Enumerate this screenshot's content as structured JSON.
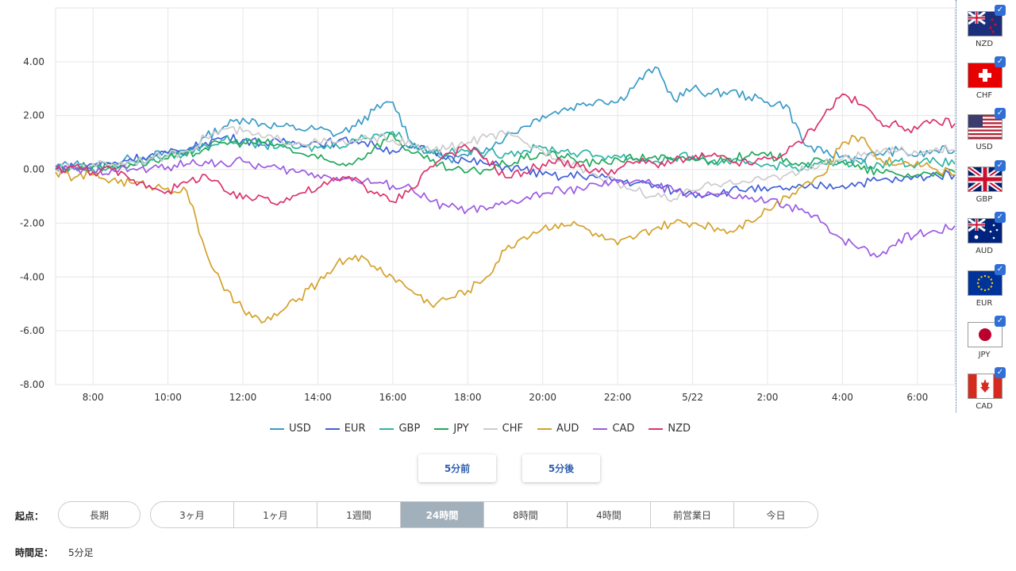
{
  "chart_data": {
    "type": "line",
    "y_ticks": [
      "4.00",
      "2.00",
      "0.00",
      "-2.00",
      "-4.00",
      "-6.00",
      "-8.00"
    ],
    "ylim": [
      -8,
      6
    ],
    "x_ticks": [
      "8:00",
      "10:00",
      "12:00",
      "14:00",
      "16:00",
      "18:00",
      "20:00",
      "22:00",
      "5/22",
      "2:00",
      "4:00",
      "6:00"
    ],
    "xlim": [
      0,
      24
    ],
    "grid": true,
    "legend": "bottom",
    "x": [
      0,
      0.5,
      1,
      1.5,
      2,
      2.5,
      3,
      3.5,
      4,
      4.5,
      5,
      5.5,
      6,
      6.5,
      7,
      7.5,
      8,
      8.5,
      9,
      9.5,
      10,
      10.5,
      11,
      11.5,
      12,
      12.5,
      13,
      13.5,
      14,
      14.5,
      15,
      15.5,
      16,
      16.5,
      17,
      17.5,
      18,
      18.5,
      19,
      19.5,
      20,
      20.5,
      21,
      21.5,
      22,
      22.5,
      23,
      23.5,
      24
    ],
    "series": [
      {
        "name": "USD",
        "color": "#3a9bc7",
        "values": [
          0.1,
          0.2,
          0.1,
          0.2,
          0.4,
          0.5,
          0.6,
          0.7,
          1.2,
          1.6,
          1.9,
          1.7,
          1.6,
          1.5,
          1.5,
          1.3,
          1.6,
          2.2,
          2.5,
          1.0,
          0.6,
          0.4,
          0.5,
          0.8,
          1.2,
          1.6,
          2.0,
          2.2,
          2.4,
          2.6,
          2.5,
          3.2,
          3.8,
          2.6,
          3.0,
          2.8,
          2.9,
          2.7,
          2.5,
          2.4,
          0.9,
          0.6,
          0.5,
          0.4,
          0.6,
          0.7,
          0.5,
          0.7,
          0.7
        ]
      },
      {
        "name": "EUR",
        "color": "#3f5fd6",
        "values": [
          0.0,
          0.1,
          0.2,
          0.2,
          0.4,
          0.5,
          0.6,
          0.7,
          1.0,
          1.2,
          1.1,
          1.0,
          1.0,
          1.0,
          1.0,
          1.0,
          1.1,
          0.9,
          0.7,
          0.8,
          0.7,
          0.5,
          0.3,
          0.2,
          0.1,
          0.0,
          -0.2,
          -0.3,
          -0.2,
          -0.3,
          -0.4,
          -0.5,
          -0.6,
          -0.8,
          -0.9,
          -0.9,
          -0.8,
          -0.7,
          -0.8,
          -0.7,
          -0.7,
          -0.6,
          -0.6,
          -0.5,
          -0.4,
          -0.4,
          -0.3,
          -0.2,
          -0.2
        ]
      },
      {
        "name": "GBP",
        "color": "#2fb3a6",
        "values": [
          0.1,
          0.1,
          0.0,
          0.1,
          0.2,
          0.4,
          0.5,
          0.6,
          0.9,
          1.1,
          1.0,
          0.9,
          0.9,
          0.8,
          0.8,
          0.9,
          1.1,
          1.3,
          1.4,
          0.9,
          0.7,
          0.6,
          0.7,
          0.6,
          0.6,
          0.7,
          0.8,
          0.7,
          0.6,
          0.5,
          0.5,
          0.4,
          0.3,
          0.4,
          0.5,
          0.3,
          0.2,
          0.3,
          0.2,
          0.1,
          0.1,
          0.2,
          0.3,
          0.2,
          0.2,
          0.3,
          0.2,
          0.3,
          0.2
        ]
      },
      {
        "name": "JPY",
        "color": "#20a85a",
        "values": [
          0.0,
          0.1,
          0.1,
          0.1,
          0.2,
          0.3,
          0.4,
          0.5,
          0.8,
          1.0,
          1.0,
          1.0,
          0.9,
          0.6,
          0.4,
          0.2,
          0.3,
          0.8,
          1.3,
          0.6,
          0.3,
          0.0,
          -0.1,
          0.0,
          0.2,
          0.4,
          0.6,
          0.5,
          0.3,
          0.2,
          0.4,
          0.4,
          0.5,
          0.3,
          0.4,
          0.3,
          0.4,
          0.5,
          0.5,
          0.4,
          0.2,
          0.3,
          0.3,
          0.0,
          -0.1,
          -0.2,
          -0.2,
          -0.1,
          -0.1
        ]
      },
      {
        "name": "CHF",
        "color": "#cccccc",
        "values": [
          0.0,
          0.1,
          0.2,
          0.2,
          0.3,
          0.4,
          0.5,
          0.7,
          1.2,
          1.5,
          1.4,
          1.2,
          1.1,
          1.0,
          1.0,
          1.0,
          1.0,
          1.2,
          1.1,
          0.9,
          0.7,
          0.8,
          1.0,
          1.2,
          1.3,
          1.0,
          0.7,
          0.4,
          0.1,
          -0.3,
          -0.5,
          -0.8,
          -1.0,
          -1.1,
          -0.8,
          -0.6,
          -0.4,
          -0.5,
          -0.3,
          -0.2,
          0.0,
          0.2,
          0.4,
          0.5,
          0.6,
          0.7,
          0.6,
          0.8,
          0.7
        ]
      },
      {
        "name": "AUD",
        "color": "#d4a12a",
        "values": [
          -0.1,
          -0.3,
          -0.2,
          -0.4,
          -0.5,
          -0.6,
          -0.7,
          -0.8,
          -3.0,
          -4.5,
          -5.2,
          -5.7,
          -5.3,
          -4.8,
          -4.2,
          -3.5,
          -3.2,
          -3.6,
          -4.0,
          -4.5,
          -5.0,
          -4.8,
          -4.5,
          -4.0,
          -3.0,
          -2.5,
          -2.2,
          -2.0,
          -2.1,
          -2.5,
          -2.8,
          -2.5,
          -2.2,
          -2.0,
          -2.0,
          -2.1,
          -2.3,
          -1.9,
          -1.5,
          -1.0,
          -0.5,
          -0.2,
          1.0,
          1.2,
          0.4,
          0.2,
          0.3,
          0.0,
          -0.2
        ]
      },
      {
        "name": "CAD",
        "color": "#9b5ae0",
        "values": [
          0.0,
          0.0,
          -0.1,
          0.0,
          0.0,
          0.0,
          0.1,
          0.2,
          0.3,
          0.2,
          0.3,
          0.1,
          0.0,
          -0.1,
          -0.2,
          -0.3,
          -0.4,
          -0.5,
          -0.6,
          -0.7,
          -1.2,
          -1.4,
          -1.5,
          -1.5,
          -1.3,
          -1.1,
          -0.9,
          -0.8,
          -0.7,
          -0.6,
          -0.5,
          -0.4,
          -0.6,
          -0.8,
          -0.9,
          -0.9,
          -1.0,
          -1.1,
          -1.2,
          -1.3,
          -1.6,
          -2.0,
          -2.6,
          -2.9,
          -3.2,
          -2.6,
          -2.4,
          -2.3,
          -2.1
        ]
      },
      {
        "name": "NZD",
        "color": "#d9336e",
        "values": [
          0.0,
          0.1,
          -0.1,
          0.0,
          -0.4,
          -0.6,
          -0.8,
          -0.5,
          -0.2,
          -0.8,
          -1.1,
          -1.0,
          -1.2,
          -0.9,
          -0.7,
          -0.4,
          -0.3,
          -0.9,
          -1.2,
          -0.7,
          0.1,
          0.6,
          0.8,
          0.4,
          -0.3,
          -0.1,
          0.2,
          0.3,
          0.1,
          -0.1,
          0.0,
          0.3,
          0.2,
          0.3,
          0.4,
          0.5,
          0.3,
          0.2,
          0.4,
          0.6,
          1.2,
          2.0,
          2.8,
          2.4,
          1.8,
          1.6,
          1.5,
          1.8,
          1.7
        ]
      }
    ]
  },
  "flags": [
    {
      "code": "NZD",
      "checked": "✓"
    },
    {
      "code": "CHF",
      "checked": "✓"
    },
    {
      "code": "USD",
      "checked": "✓"
    },
    {
      "code": "GBP",
      "checked": "✓"
    },
    {
      "code": "AUD",
      "checked": "✓"
    },
    {
      "code": "EUR",
      "checked": "✓"
    },
    {
      "code": "JPY",
      "checked": "✓"
    },
    {
      "code": "CAD",
      "checked": "✓"
    }
  ],
  "controls": {
    "prev_label": "5分前",
    "next_label": "5分後"
  },
  "range": {
    "label": "起点：",
    "long_label": "長期",
    "options": [
      "3ヶ月",
      "1ヶ月",
      "1週間",
      "24時間",
      "8時間",
      "4時間",
      "前営業日",
      "今日"
    ],
    "active": "24時間"
  },
  "timeframe": {
    "label": "時間足：",
    "value": "5分足"
  }
}
